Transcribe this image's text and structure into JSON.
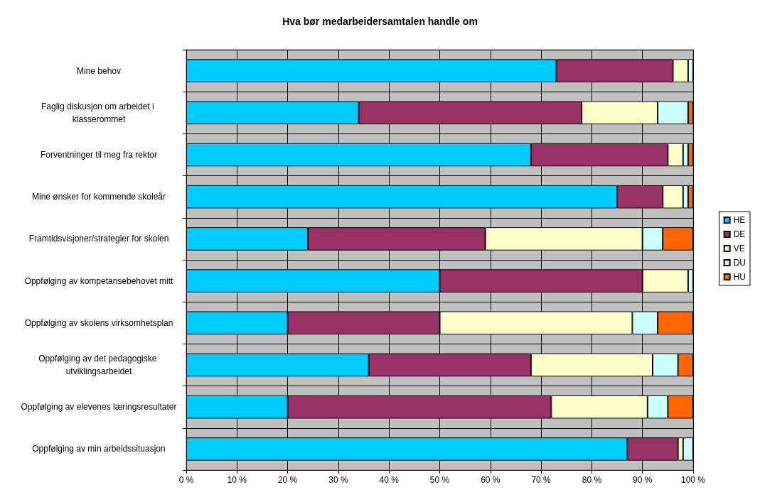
{
  "chart_data": {
    "type": "bar",
    "title": "Hva bør medarbeidersamtalen handle om",
    "orientation": "horizontal",
    "stacked": true,
    "categories": [
      "Mine behov",
      "Faglig diskusjon om arbeidet i klasserommet",
      "Forventninger til meg fra rektor",
      "Mine ønsker for kommende skoleår",
      "Framtidsvisjoner/strategier for skolen",
      "Oppfølging av kompetansebehovet mitt",
      "Oppfølging av skolens virksomhetsplan",
      "Oppfølging av det pedagogiske utviklingsarbeidet",
      "Oppfølging av elevenes læringsresultater",
      "Oppfølging av min arbeidssituasjon"
    ],
    "series": [
      {
        "name": "HE",
        "color": "#00ccff",
        "values": [
          73,
          34,
          68,
          85,
          24,
          50,
          20,
          36,
          20,
          87
        ]
      },
      {
        "name": "DE",
        "color": "#993366",
        "values": [
          23,
          44,
          27,
          9,
          35,
          40,
          30,
          32,
          52,
          10
        ]
      },
      {
        "name": "VE",
        "color": "#ffffcc",
        "values": [
          3,
          15,
          3,
          4,
          31,
          9,
          38,
          24,
          19,
          1
        ]
      },
      {
        "name": "DU",
        "color": "#ccffff",
        "values": [
          1,
          6,
          1,
          1,
          4,
          1,
          5,
          5,
          4,
          2
        ]
      },
      {
        "name": "HU",
        "color": "#ff6600",
        "values": [
          0,
          1,
          1,
          1,
          6,
          0,
          7,
          3,
          5,
          0
        ]
      }
    ],
    "xlim": [
      0,
      100
    ],
    "xticks": [
      {
        "value": 0,
        "label": "0 %"
      },
      {
        "value": 10,
        "label": "10 %"
      },
      {
        "value": 20,
        "label": "20 %"
      },
      {
        "value": 30,
        "label": "30 %"
      },
      {
        "value": 40,
        "label": "40 %"
      },
      {
        "value": 50,
        "label": "50 %"
      },
      {
        "value": 60,
        "label": "60 %"
      },
      {
        "value": 70,
        "label": "70 %"
      },
      {
        "value": 80,
        "label": "80 %"
      },
      {
        "value": 90,
        "label": "90 %"
      },
      {
        "value": 100,
        "label": "100 %"
      }
    ],
    "grid": true,
    "legend": "right"
  }
}
